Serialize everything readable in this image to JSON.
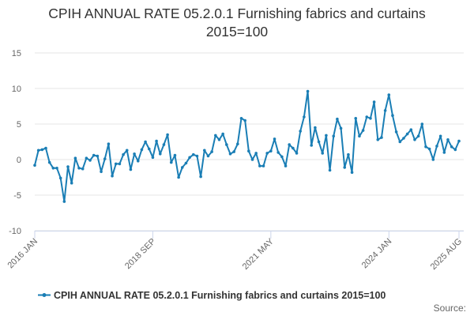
{
  "chart_data": {
    "type": "line",
    "title": "CPIH ANNUAL RATE 05.2.0.1 Furnishing fabrics and curtains",
    "subtitle": "2015=100",
    "ylim": [
      -10,
      15
    ],
    "yticks": [
      -10,
      -5,
      0,
      5,
      10,
      15
    ],
    "x_tick_labels": [
      "2016 JAN",
      "2018 SEP",
      "2021 MAY",
      "2024 JAN",
      "2025 AUG"
    ],
    "x_tick_index": [
      0,
      32,
      64,
      96,
      115
    ],
    "grid": true,
    "legend_position": "bottom",
    "credit": "Source:",
    "series": [
      {
        "name": "CPIH ANNUAL RATE 05.2.0.1 Furnishing fabrics and curtains 2015=100",
        "color": "#1a7eb5",
        "values": [
          -0.8,
          1.3,
          1.4,
          1.6,
          -0.4,
          -1.2,
          -1.2,
          -2.6,
          -5.9,
          -1.0,
          -3.3,
          0.2,
          -1.2,
          -1.3,
          0.2,
          -0.1,
          0.6,
          0.5,
          -1.7,
          0.1,
          2.2,
          -2.3,
          -0.6,
          -0.6,
          0.7,
          1.3,
          -1.4,
          0.8,
          -0.2,
          1.4,
          2.5,
          1.5,
          0.3,
          2.6,
          0.8,
          2.1,
          3.5,
          -0.4,
          0.6,
          -2.5,
          -1.1,
          -0.5,
          0.3,
          0.7,
          0.5,
          -2.4,
          1.3,
          0.5,
          1.1,
          3.4,
          2.8,
          3.6,
          2.1,
          0.8,
          1.1,
          2.2,
          5.8,
          5.5,
          1.2,
          0.0,
          0.9,
          -0.9,
          -0.9,
          0.9,
          1.2,
          2.9,
          1.0,
          0.4,
          -0.9,
          2.1,
          1.6,
          0.9,
          4.0,
          6.0,
          9.6,
          2.0,
          4.5,
          2.5,
          0.9,
          3.4,
          -1.5,
          3.3,
          5.7,
          4.4,
          -1.1,
          0.7,
          -1.8,
          5.8,
          3.3,
          4.1,
          6.0,
          5.8,
          8.1,
          2.8,
          3.1,
          6.9,
          9.1,
          6.2,
          3.9,
          2.5,
          3.0,
          3.6,
          4.2,
          2.8,
          3.3,
          5.0,
          1.8,
          1.5,
          0.0,
          1.9,
          3.3,
          1.0,
          2.8,
          1.8,
          1.4,
          2.6
        ]
      }
    ]
  }
}
